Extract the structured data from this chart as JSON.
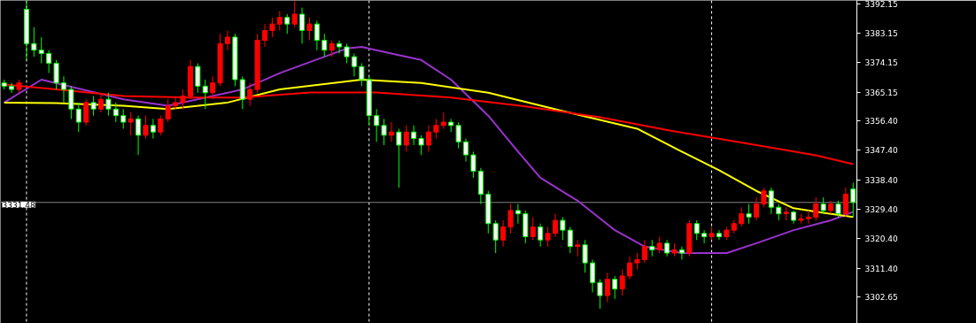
{
  "chart_data": {
    "type": "candlestick",
    "categories": [
      null,
      null,
      null,
      null,
      null,
      null,
      null,
      null,
      null,
      null,
      null,
      null,
      null,
      null,
      null,
      null,
      null,
      null,
      null,
      null,
      null,
      null,
      null,
      null,
      null,
      null,
      null,
      null,
      null,
      null,
      null,
      null,
      null,
      null,
      null,
      null,
      null,
      null,
      null,
      null,
      null,
      null,
      null,
      null,
      null,
      null,
      null,
      null,
      null,
      null,
      null,
      null,
      null,
      null,
      null,
      null,
      null,
      null,
      null,
      null,
      null,
      null,
      null,
      null,
      null,
      null,
      null,
      null,
      null,
      null,
      null,
      null,
      null,
      null,
      null,
      null,
      null,
      null,
      null,
      null,
      null,
      null,
      null,
      null,
      null,
      null,
      null,
      null,
      null,
      null,
      null,
      null,
      null,
      null,
      null,
      null,
      null,
      null,
      null,
      null,
      null,
      null,
      null,
      null,
      null,
      null,
      null,
      null,
      null,
      null,
      null,
      null,
      null,
      null,
      null
    ],
    "ohlc": [
      [
        3368,
        3369,
        3366,
        3367
      ],
      [
        3367,
        3368,
        3365,
        3366
      ],
      [
        3366,
        3369,
        3365,
        3368
      ],
      [
        3390.5,
        3393,
        3375,
        3380
      ],
      [
        3380,
        3385,
        3376,
        3378
      ],
      [
        3378,
        3382,
        3374,
        3377
      ],
      [
        3377,
        3378,
        3371,
        3374
      ],
      [
        3374,
        3375,
        3366,
        3368
      ],
      [
        3368,
        3370,
        3362,
        3366
      ],
      [
        3366,
        3367,
        3357,
        3360
      ],
      [
        3360,
        3362,
        3353,
        3356
      ],
      [
        3356,
        3363,
        3355,
        3362
      ],
      [
        3362,
        3364,
        3358,
        3360
      ],
      [
        3360,
        3365,
        3359,
        3363
      ],
      [
        3363,
        3365,
        3358,
        3360
      ],
      [
        3360,
        3362,
        3356,
        3358
      ],
      [
        3358,
        3360,
        3354,
        3356
      ],
      [
        3356,
        3359,
        3352,
        3357
      ],
      [
        3357,
        3358,
        3346,
        3352
      ],
      [
        3352,
        3358,
        3351,
        3355
      ],
      [
        3355,
        3357,
        3351,
        3353
      ],
      [
        3353,
        3358,
        3352,
        3357
      ],
      [
        3357,
        3363,
        3356,
        3361
      ],
      [
        3361,
        3364,
        3360,
        3362
      ],
      [
        3362,
        3366,
        3360,
        3364
      ],
      [
        3364,
        3375,
        3363,
        3373
      ],
      [
        3373,
        3374,
        3365,
        3367
      ],
      [
        3367,
        3369,
        3360,
        3365
      ],
      [
        3365,
        3370,
        3363,
        3368
      ],
      [
        3368,
        3383,
        3367,
        3380
      ],
      [
        3380,
        3384,
        3378,
        3382
      ],
      [
        3382,
        3383,
        3367,
        3369
      ],
      [
        3369,
        3370,
        3360,
        3363
      ],
      [
        3363,
        3368,
        3361,
        3366
      ],
      [
        3366,
        3383,
        3365,
        3381
      ],
      [
        3381,
        3386,
        3379,
        3384
      ],
      [
        3384,
        3388,
        3382,
        3386
      ],
      [
        3386,
        3390,
        3384,
        3388
      ],
      [
        3388,
        3389,
        3383,
        3386
      ],
      [
        3386,
        3393,
        3385,
        3389
      ],
      [
        3389,
        3391,
        3380,
        3384
      ],
      [
        3384,
        3388,
        3381,
        3386
      ],
      [
        3386,
        3387,
        3378,
        3381
      ],
      [
        3381,
        3383,
        3376,
        3378
      ],
      [
        3378,
        3381,
        3376,
        3380
      ],
      [
        3380,
        3381,
        3377,
        3379
      ],
      [
        3379,
        3380,
        3374,
        3376
      ],
      [
        3376,
        3377,
        3370,
        3373
      ],
      [
        3373,
        3374,
        3367,
        3369
      ],
      [
        3369,
        3370,
        3355,
        3358
      ],
      [
        3358,
        3360,
        3350,
        3355
      ],
      [
        3355,
        3357,
        3349,
        3352
      ],
      [
        3352,
        3356,
        3350,
        3353
      ],
      [
        3353,
        3354,
        3336,
        3349
      ],
      [
        3349,
        3355,
        3347,
        3353
      ],
      [
        3353,
        3355,
        3349,
        3351
      ],
      [
        3351,
        3352,
        3346,
        3349
      ],
      [
        3349,
        3355,
        3347,
        3353
      ],
      [
        3353,
        3357,
        3351,
        3355
      ],
      [
        3355,
        3359,
        3354,
        3356
      ],
      [
        3356,
        3357,
        3353,
        3355
      ],
      [
        3355,
        3356,
        3348,
        3350
      ],
      [
        3350,
        3351,
        3344,
        3346
      ],
      [
        3346,
        3347,
        3339,
        3341
      ],
      [
        3341,
        3342,
        3331,
        3334
      ],
      [
        3334,
        3335,
        3322,
        3325
      ],
      [
        3325,
        3326,
        3316,
        3320
      ],
      [
        3320,
        3326,
        3318,
        3324
      ],
      [
        3324,
        3331,
        3322,
        3329
      ],
      [
        3329,
        3331,
        3325,
        3328
      ],
      [
        3328,
        3329,
        3319,
        3321
      ],
      [
        3321,
        3327,
        3320,
        3324
      ],
      [
        3324,
        3325,
        3318,
        3320
      ],
      [
        3320,
        3324,
        3318,
        3322
      ],
      [
        3322,
        3328,
        3321,
        3326
      ],
      [
        3326,
        3327,
        3320,
        3323
      ],
      [
        3323,
        3324,
        3316,
        3318
      ],
      [
        3318,
        3320,
        3315,
        3318.5
      ],
      [
        3318.5,
        3320,
        3310,
        3313
      ],
      [
        3313,
        3314,
        3304,
        3307
      ],
      [
        3307,
        3308,
        3299,
        3303
      ],
      [
        3303,
        3310,
        3301,
        3308
      ],
      [
        3308,
        3309,
        3302,
        3305
      ],
      [
        3305,
        3311,
        3303,
        3309
      ],
      [
        3309,
        3315,
        3308,
        3313
      ],
      [
        3313,
        3316,
        3311,
        3314
      ],
      [
        3314,
        3320,
        3313,
        3318
      ],
      [
        3318,
        3320,
        3315,
        3317
      ],
      [
        3317,
        3321,
        3316,
        3319
      ],
      [
        3319,
        3320,
        3315,
        3316
      ],
      [
        3316,
        3319,
        3315,
        3317
      ],
      [
        3317,
        3318,
        3314,
        3316
      ],
      [
        3316,
        3326,
        3315,
        3325
      ],
      [
        3325,
        3326,
        3320,
        3322
      ],
      [
        3322,
        3323,
        3319,
        3321
      ],
      [
        3321,
        3324,
        3320,
        3322
      ],
      [
        3322,
        3323,
        3320,
        3321
      ],
      [
        3321,
        3324,
        3320,
        3323
      ],
      [
        3323,
        3326,
        3322,
        3325
      ],
      [
        3325,
        3330,
        3324,
        3328
      ],
      [
        3328,
        3331,
        3325,
        3327
      ],
      [
        3327,
        3333,
        3326,
        3331
      ],
      [
        3331,
        3336,
        3330,
        3335
      ],
      [
        3335,
        3336,
        3328,
        3330
      ],
      [
        3330,
        3331,
        3326,
        3328
      ],
      [
        3328,
        3330,
        3326,
        3328.5
      ],
      [
        3328.5,
        3329,
        3325,
        3326
      ],
      [
        3326,
        3328,
        3325,
        3326.5
      ],
      [
        3326.5,
        3329,
        3325,
        3327
      ],
      [
        3327,
        3333,
        3326,
        3331
      ],
      [
        3331,
        3333,
        3328,
        3329
      ],
      [
        3329,
        3332,
        3328,
        3331
      ],
      [
        3331,
        3332,
        3327,
        3328
      ],
      [
        3328,
        3336,
        3327,
        3334
      ],
      [
        3335.6,
        3337.5,
        3327,
        3331.48
      ]
    ],
    "series": [
      {
        "type": "line",
        "color": "#9933cc",
        "values": [
          3362,
          null,
          null,
          null,
          null,
          3369,
          null,
          null,
          null,
          null,
          null,
          null,
          null,
          null,
          null,
          null,
          3363,
          null,
          null,
          null,
          null,
          null,
          3361,
          null,
          null,
          null,
          null,
          null,
          null,
          null,
          null,
          null,
          3366,
          null,
          null,
          null,
          null,
          3371,
          null,
          null,
          null,
          null,
          null,
          null,
          null,
          null,
          3378.5,
          null,
          3379,
          null,
          null,
          null,
          3377,
          null,
          null,
          null,
          3375,
          null,
          null,
          null,
          3369,
          null,
          null,
          null,
          null,
          3358,
          null,
          null,
          null,
          3347,
          null,
          null,
          3339,
          null,
          null,
          null,
          null,
          3332,
          null,
          null,
          null,
          null,
          3323,
          null,
          null,
          null,
          3318,
          null,
          null,
          null,
          null,
          3316,
          null,
          null,
          null,
          null,
          null,
          3316,
          null,
          null,
          null,
          3319,
          null,
          null,
          null,
          null,
          3323,
          null,
          null,
          null,
          null,
          3326,
          null,
          null,
          3328.6
        ]
      },
      {
        "type": "line",
        "color": "#ffff00",
        "values": [
          3362,
          null,
          null,
          null,
          null,
          null,
          null,
          3361.8,
          null,
          null,
          null,
          null,
          null,
          null,
          null,
          null,
          3361,
          null,
          null,
          null,
          null,
          null,
          3360,
          null,
          null,
          null,
          null,
          null,
          null,
          null,
          3362,
          null,
          null,
          null,
          null,
          null,
          null,
          3366,
          null,
          null,
          null,
          null,
          null,
          null,
          null,
          null,
          null,
          null,
          3369,
          null,
          null,
          null,
          null,
          null,
          null,
          null,
          3368,
          null,
          null,
          null,
          null,
          null,
          null,
          null,
          null,
          3365,
          null,
          null,
          null,
          null,
          null,
          null,
          null,
          null,
          null,
          3359.4,
          null,
          null,
          null,
          null,
          null,
          null,
          null,
          null,
          null,
          3354,
          null,
          null,
          null,
          null,
          null,
          3347,
          null,
          null,
          null,
          null,
          3341.3,
          null,
          null,
          null,
          null,
          3335,
          null,
          null,
          null,
          null,
          3329.7,
          null,
          null,
          null,
          3328.3,
          null,
          null,
          null,
          3327
        ]
      },
      {
        "type": "line",
        "color": "#ff0000",
        "values": [
          3367.5,
          null,
          null,
          null,
          null,
          null,
          null,
          3366,
          null,
          null,
          null,
          null,
          null,
          null,
          null,
          null,
          3364,
          null,
          null,
          null,
          null,
          null,
          null,
          null,
          null,
          3363.5,
          null,
          null,
          null,
          null,
          null,
          null,
          3363.5,
          null,
          null,
          null,
          null,
          null,
          null,
          null,
          null,
          3365.1,
          null,
          null,
          null,
          null,
          null,
          null,
          null,
          null,
          3365.1,
          null,
          null,
          null,
          null,
          null,
          null,
          null,
          null,
          null,
          3363.5,
          null,
          null,
          null,
          null,
          null,
          null,
          null,
          null,
          null,
          3360.8,
          null,
          null,
          null,
          null,
          null,
          null,
          null,
          null,
          null,
          3357.5,
          null,
          null,
          null,
          null,
          null,
          null,
          null,
          null,
          null,
          3353.2,
          null,
          null,
          null,
          null,
          null,
          null,
          null,
          null,
          null,
          3349.4,
          null,
          null,
          null,
          null,
          null,
          null,
          null,
          null,
          3345.9,
          null,
          null,
          null,
          null,
          3343.2
        ]
      }
    ],
    "ylim": [
      3294.5,
      3393.2
    ],
    "yticks": [
      3392.15,
      3383.15,
      3374.15,
      3365.15,
      {
        "value": 3356.4,
        "label": "3356.40"
      },
      {
        "value": 3347.4,
        "label": "3347.40"
      },
      {
        "value": 3338.4,
        "label": "3338.40"
      },
      {
        "value": 3329.4,
        "label": "3329.40"
      },
      {
        "value": 3320.4,
        "label": "3320.40"
      },
      {
        "value": 3311.4,
        "label": "3311.40"
      },
      3302.65
    ],
    "ref_lines": [
      {
        "axis": "y",
        "value": 3331.48,
        "label": "3331.48",
        "color": "#808080",
        "line_style": "solid"
      }
    ],
    "tick_labels": "y",
    "grid": "x"
  }
}
